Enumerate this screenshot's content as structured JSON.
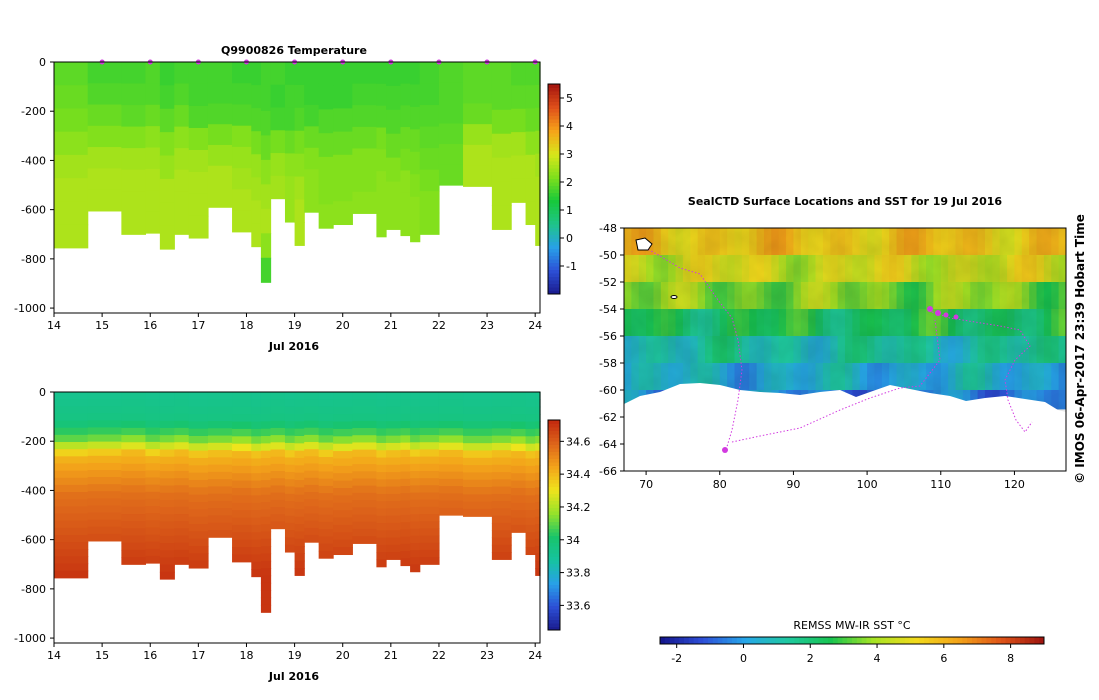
{
  "colors": {
    "temp_ramp": [
      "#1a1a8c",
      "#2c4fd6",
      "#28a0e8",
      "#1fc48a",
      "#17c93a",
      "#7ee01c",
      "#d8e61a",
      "#f6a319",
      "#e0501a",
      "#a3140e"
    ],
    "sal_ramp": [
      "#1a1a8c",
      "#2c4fd6",
      "#28a0e8",
      "#16c3a0",
      "#18c46a",
      "#95e22a",
      "#efe41c",
      "#f3a31a",
      "#dd641a",
      "#c2280e"
    ],
    "sst_ramp": [
      "#14148a",
      "#2e4fd8",
      "#27a7ea",
      "#1fc9a0",
      "#18c450",
      "#a6e424",
      "#f2da1c",
      "#f3a319",
      "#df5418",
      "#9c120e"
    ],
    "track": "#d23ae0",
    "axis": "#000000"
  },
  "chart_data": [
    {
      "type": "heatmap",
      "title": "Q9900826  Temperature",
      "variable": "temperature",
      "xlabel": "Jul 2016",
      "ylabel": "",
      "x_ticks": [
        "14",
        "15",
        "16",
        "17",
        "18",
        "19",
        "20",
        "21",
        "22",
        "23",
        "24"
      ],
      "x_range": [
        14,
        24.1
      ],
      "y_ticks": [
        "0",
        "-200",
        "-400",
        "-600",
        "-800",
        "-1000"
      ],
      "y_range": [
        -1020,
        0
      ],
      "colorbar": {
        "ticks": [
          "-1",
          "0",
          "1",
          "2",
          "3",
          "4",
          "5"
        ],
        "range": [
          -2,
          5.5
        ]
      },
      "profile_markers": [
        15,
        16,
        17,
        18,
        19,
        20,
        21,
        22,
        23,
        24
      ],
      "profiles": [
        {
          "x0": 14.0,
          "x1": 14.7,
          "max_depth": 755,
          "values": [
            1.9,
            2.0,
            2.1,
            2.3,
            2.5,
            2.6,
            2.6,
            2.6
          ]
        },
        {
          "x0": 14.7,
          "x1": 15.4,
          "max_depth": 605,
          "values": [
            1.7,
            1.8,
            2.0,
            2.2,
            2.5,
            2.6,
            2.6
          ]
        },
        {
          "x0": 15.4,
          "x1": 15.9,
          "max_depth": 700,
          "values": [
            1.7,
            1.8,
            1.9,
            2.2,
            2.5,
            2.6,
            2.6,
            2.6
          ]
        },
        {
          "x0": 15.9,
          "x1": 16.2,
          "max_depth": 695,
          "values": [
            1.8,
            1.8,
            2.0,
            2.3,
            2.5,
            2.6,
            2.6,
            2.6
          ]
        },
        {
          "x0": 16.2,
          "x1": 16.5,
          "max_depth": 760,
          "values": [
            1.6,
            1.7,
            1.9,
            2.2,
            2.4,
            2.6,
            2.6,
            2.6
          ]
        },
        {
          "x0": 16.5,
          "x1": 16.8,
          "max_depth": 700,
          "values": [
            1.7,
            1.8,
            2.0,
            2.3,
            2.5,
            2.6,
            2.6,
            2.6
          ]
        },
        {
          "x0": 16.8,
          "x1": 17.2,
          "max_depth": 715,
          "values": [
            1.7,
            1.7,
            1.8,
            2.2,
            2.5,
            2.6,
            2.6,
            2.6
          ]
        },
        {
          "x0": 17.2,
          "x1": 17.7,
          "max_depth": 590,
          "values": [
            1.7,
            1.7,
            1.8,
            2.1,
            2.4,
            2.6,
            2.6
          ]
        },
        {
          "x0": 17.7,
          "x1": 18.1,
          "max_depth": 690,
          "values": [
            1.6,
            1.7,
            1.8,
            2.2,
            2.4,
            2.5,
            2.6,
            2.6
          ]
        },
        {
          "x0": 18.1,
          "x1": 18.3,
          "max_depth": 750,
          "values": [
            1.6,
            1.7,
            1.8,
            2.1,
            2.4,
            2.5,
            2.6,
            2.6
          ]
        },
        {
          "x0": 18.3,
          "x1": 18.5,
          "max_depth": 895,
          "values": [
            1.7,
            1.7,
            1.8,
            2.0,
            2.3,
            2.5,
            2.6,
            2.3,
            1.7
          ]
        },
        {
          "x0": 18.5,
          "x1": 18.8,
          "max_depth": 555,
          "values": [
            1.7,
            1.6,
            1.7,
            2.1,
            2.4,
            2.5
          ]
        },
        {
          "x0": 18.8,
          "x1": 19.0,
          "max_depth": 650,
          "values": [
            1.6,
            1.7,
            1.7,
            2.0,
            2.3,
            2.4,
            2.4
          ]
        },
        {
          "x0": 19.0,
          "x1": 19.2,
          "max_depth": 745,
          "values": [
            1.6,
            1.7,
            1.8,
            2.1,
            2.3,
            2.5,
            2.6,
            2.6
          ]
        },
        {
          "x0": 19.2,
          "x1": 19.5,
          "max_depth": 610,
          "values": [
            1.6,
            1.6,
            1.7,
            2.0,
            2.2,
            2.3,
            2.3
          ]
        },
        {
          "x0": 19.5,
          "x1": 19.8,
          "max_depth": 675,
          "values": [
            1.6,
            1.6,
            1.8,
            2.0,
            2.2,
            2.2,
            2.3
          ]
        },
        {
          "x0": 19.8,
          "x1": 20.2,
          "max_depth": 660,
          "values": [
            1.6,
            1.6,
            1.8,
            2.0,
            2.2,
            2.2,
            2.3
          ]
        },
        {
          "x0": 20.2,
          "x1": 20.7,
          "max_depth": 615,
          "values": [
            1.6,
            1.7,
            1.8,
            2.0,
            2.2,
            2.2,
            2.3
          ]
        },
        {
          "x0": 20.7,
          "x1": 20.9,
          "max_depth": 710,
          "values": [
            1.6,
            1.7,
            1.8,
            2.1,
            2.2,
            2.3,
            2.3,
            2.3
          ]
        },
        {
          "x0": 20.9,
          "x1": 21.2,
          "max_depth": 680,
          "values": [
            1.6,
            1.7,
            1.8,
            2.0,
            2.2,
            2.3,
            2.3
          ]
        },
        {
          "x0": 21.2,
          "x1": 21.4,
          "max_depth": 705,
          "values": [
            1.6,
            1.7,
            1.8,
            2.0,
            2.1,
            2.3,
            2.3,
            2.3
          ]
        },
        {
          "x0": 21.4,
          "x1": 21.6,
          "max_depth": 730,
          "values": [
            1.6,
            1.7,
            1.8,
            2.0,
            2.1,
            2.2,
            2.3,
            2.3
          ]
        },
        {
          "x0": 21.6,
          "x1": 22.0,
          "max_depth": 700,
          "values": [
            1.7,
            1.7,
            1.8,
            1.9,
            2.0,
            2.1,
            2.2,
            2.2
          ]
        },
        {
          "x0": 22.0,
          "x1": 22.5,
          "max_depth": 500,
          "values": [
            1.8,
            1.8,
            1.8,
            1.9,
            2.0,
            2.0
          ]
        },
        {
          "x0": 22.5,
          "x1": 23.1,
          "max_depth": 505,
          "values": [
            1.9,
            1.9,
            2.0,
            2.4,
            2.6,
            2.6
          ]
        },
        {
          "x0": 23.1,
          "x1": 23.5,
          "max_depth": 680,
          "values": [
            1.9,
            1.9,
            2.1,
            2.5,
            2.6,
            2.6,
            2.6
          ]
        },
        {
          "x0": 23.5,
          "x1": 23.8,
          "max_depth": 570,
          "values": [
            1.8,
            1.9,
            2.1,
            2.5,
            2.6,
            2.6
          ]
        },
        {
          "x0": 23.8,
          "x1": 24.0,
          "max_depth": 660,
          "values": [
            1.8,
            1.9,
            2.0,
            2.3,
            2.6,
            2.6,
            2.6
          ]
        },
        {
          "x0": 24.0,
          "x1": 24.1,
          "max_depth": 745,
          "values": [
            1.8,
            1.9,
            2.0,
            2.3,
            2.5,
            2.6,
            2.6,
            2.6
          ]
        }
      ]
    },
    {
      "type": "heatmap",
      "title": "",
      "variable": "salinity",
      "xlabel": "Jul 2016",
      "ylabel": "",
      "x_ticks": [
        "14",
        "15",
        "16",
        "17",
        "18",
        "19",
        "20",
        "21",
        "22",
        "23",
        "24"
      ],
      "x_range": [
        14,
        24.1
      ],
      "y_ticks": [
        "0",
        "-200",
        "-400",
        "-600",
        "-800",
        "-1000"
      ],
      "y_range": [
        -1020,
        0
      ],
      "colorbar": {
        "ticks": [
          "33.6",
          "33.8",
          "34",
          "34.2",
          "34.4",
          "34.6"
        ],
        "range": [
          33.45,
          34.73
        ]
      }
    },
    {
      "type": "heatmap",
      "title": "SealCTD Surface Locations and SST for 19 Jul 2016",
      "side_label": "IMOS 06-Apr-2017 23:39 Hobart Time",
      "copyright_symbol": "©",
      "x_ticks": [
        "70",
        "80",
        "90",
        "100",
        "110",
        "120"
      ],
      "x_range": [
        67,
        127
      ],
      "y_ticks": [
        "-48",
        "-50",
        "-52",
        "-54",
        "-56",
        "-58",
        "-60",
        "-62",
        "-64",
        "-66"
      ],
      "y_range": [
        -66,
        -48
      ],
      "colorbar": {
        "label": "REMSS MW-IR SST °C",
        "ticks": [
          "-2",
          "0",
          "2",
          "4",
          "6",
          "8"
        ],
        "range": [
          -2.5,
          9
        ]
      },
      "sst_zones": [
        {
          "lat_top": -48,
          "lat_bottom": -50,
          "value": 5.6
        },
        {
          "lat_top": -50,
          "lat_bottom": -52,
          "value": 4.6
        },
        {
          "lat_top": -52,
          "lat_bottom": -54,
          "value": 3.6
        },
        {
          "lat_top": -54,
          "lat_bottom": -56,
          "value": 2.4
        },
        {
          "lat_top": -56,
          "lat_bottom": -58,
          "value": 1.2
        },
        {
          "lat_top": -58,
          "lat_bottom": -60,
          "value": 0.4
        },
        {
          "lat_top": -60,
          "lat_bottom": -61.4,
          "value": -0.4
        }
      ]
    }
  ]
}
